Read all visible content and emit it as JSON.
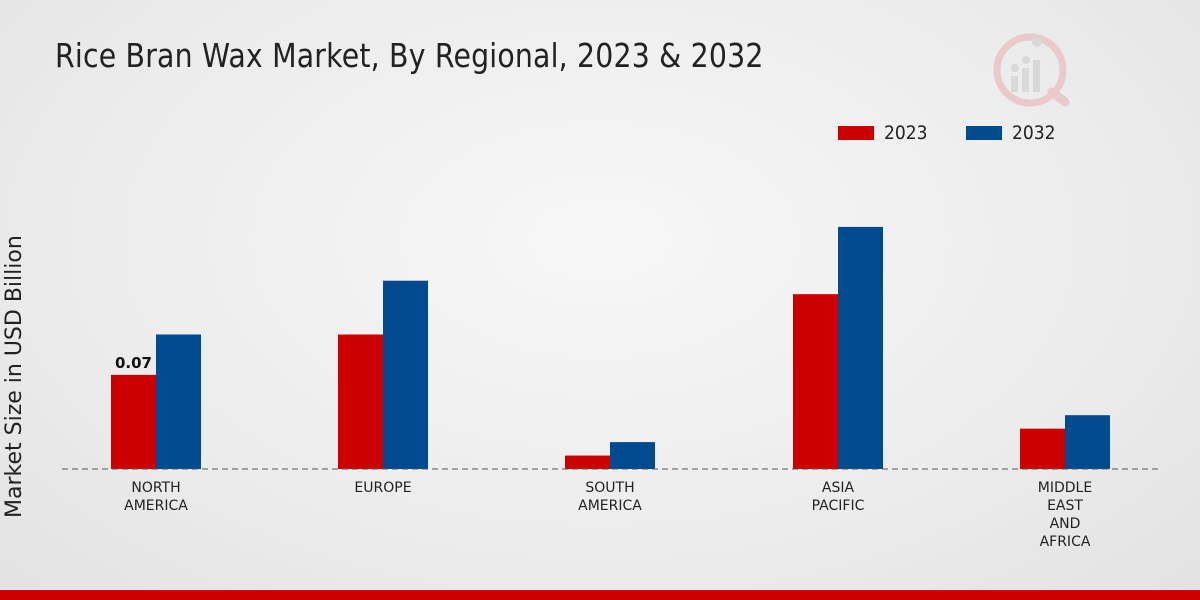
{
  "chart_data": {
    "type": "bar",
    "title": "Rice Bran Wax Market, By Regional, 2023 & 2032",
    "ylabel": "Market Size in USD Billion",
    "xlabel": "",
    "categories": [
      [
        "NORTH",
        "AMERICA"
      ],
      [
        "EUROPE"
      ],
      [
        "SOUTH",
        "AMERICA"
      ],
      [
        "ASIA",
        "PACIFIC"
      ],
      [
        "MIDDLE",
        "EAST",
        "AND",
        "AFRICA"
      ]
    ],
    "series": [
      {
        "name": "2023",
        "color": "#cc0000",
        "values": [
          0.07,
          0.1,
          0.01,
          0.13,
          0.03
        ]
      },
      {
        "name": "2032",
        "color": "#004a8f",
        "values": [
          0.1,
          0.14,
          0.02,
          0.18,
          0.04
        ]
      }
    ],
    "data_labels": [
      {
        "series": 0,
        "index": 0,
        "text": "0.07"
      }
    ],
    "ylim": [
      0,
      0.2
    ],
    "grid": false,
    "legend_position": "top-right"
  }
}
